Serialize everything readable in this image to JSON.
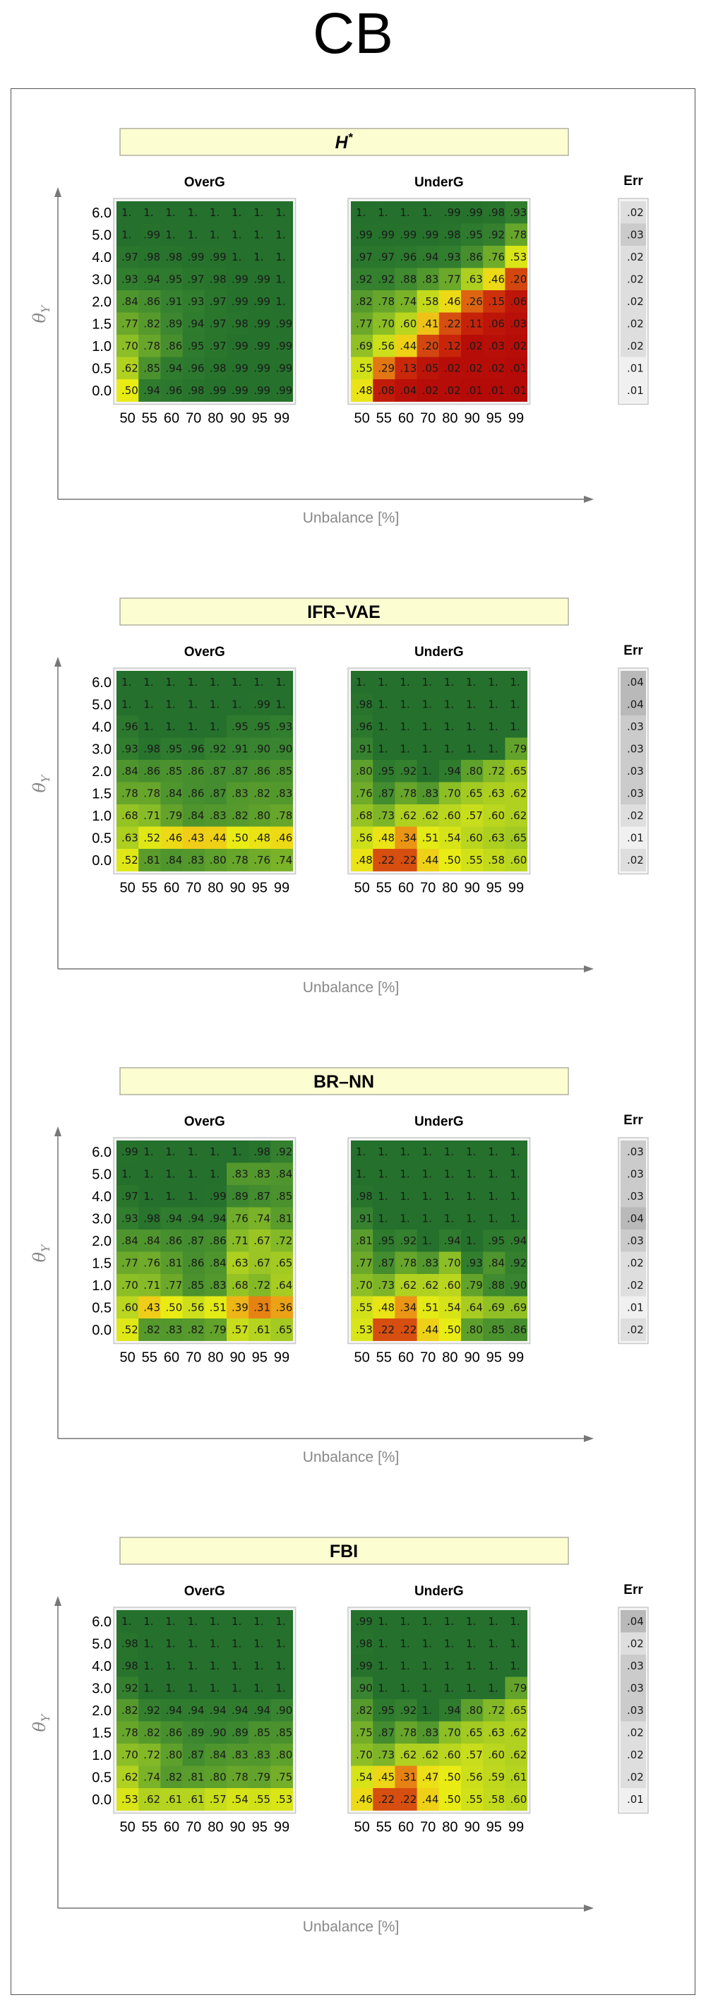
{
  "page_title": "CB",
  "chart_data": [
    {
      "type": "heatmap",
      "title": "H",
      "title_superscript": "*",
      "xlabel": "Unbalance [%]",
      "ylabel": "θ",
      "ylabel_subscript": "Y",
      "x": [
        "50",
        "55",
        "60",
        "70",
        "80",
        "90",
        "95",
        "99"
      ],
      "y": [
        "6.0",
        "5.0",
        "4.0",
        "3.0",
        "2.0",
        "1.5",
        "1.0",
        "0.5",
        "0.0"
      ],
      "err_header": "Err",
      "panels": [
        {
          "name": "OverG",
          "values": [
            [
              1,
              1,
              1,
              1,
              1,
              1,
              1,
              1
            ],
            [
              1,
              0.99,
              1,
              1,
              1,
              1,
              1,
              1
            ],
            [
              0.97,
              0.98,
              0.98,
              0.99,
              0.99,
              1,
              1,
              1
            ],
            [
              0.93,
              0.94,
              0.95,
              0.97,
              0.98,
              0.99,
              0.99,
              1
            ],
            [
              0.84,
              0.86,
              0.91,
              0.93,
              0.97,
              0.99,
              0.99,
              1
            ],
            [
              0.77,
              0.82,
              0.89,
              0.94,
              0.97,
              0.98,
              0.99,
              0.99
            ],
            [
              0.7,
              0.78,
              0.86,
              0.95,
              0.97,
              0.99,
              0.99,
              0.99
            ],
            [
              0.62,
              0.85,
              0.94,
              0.96,
              0.98,
              0.99,
              0.99,
              0.99
            ],
            [
              0.5,
              0.94,
              0.96,
              0.98,
              0.99,
              0.99,
              0.99,
              0.99
            ]
          ]
        },
        {
          "name": "UnderG",
          "values": [
            [
              1,
              1,
              1,
              1,
              0.99,
              0.99,
              0.98,
              0.93
            ],
            [
              0.99,
              0.99,
              0.99,
              0.99,
              0.98,
              0.95,
              0.92,
              0.78
            ],
            [
              0.97,
              0.97,
              0.96,
              0.94,
              0.93,
              0.86,
              0.76,
              0.53
            ],
            [
              0.92,
              0.92,
              0.88,
              0.83,
              0.77,
              0.63,
              0.46,
              0.2
            ],
            [
              0.82,
              0.78,
              0.74,
              0.58,
              0.46,
              0.26,
              0.15,
              0.06
            ],
            [
              0.77,
              0.7,
              0.6,
              0.41,
              0.22,
              0.11,
              0.06,
              0.03
            ],
            [
              0.69,
              0.56,
              0.44,
              0.2,
              0.12,
              0.02,
              0.03,
              0.02
            ],
            [
              0.55,
              0.29,
              0.13,
              0.05,
              0.02,
              0.02,
              0.02,
              0.01
            ],
            [
              0.48,
              0.08,
              0.04,
              0.02,
              0.02,
              0.01,
              0.01,
              0.01
            ]
          ]
        }
      ],
      "err": [
        0.02,
        0.03,
        0.02,
        0.02,
        0.02,
        0.02,
        0.02,
        0.01,
        0.01
      ]
    },
    {
      "type": "heatmap",
      "title": "IFR–VAE",
      "xlabel": "Unbalance [%]",
      "ylabel": "θ",
      "ylabel_subscript": "Y",
      "x": [
        "50",
        "55",
        "60",
        "70",
        "80",
        "90",
        "95",
        "99"
      ],
      "y": [
        "6.0",
        "5.0",
        "4.0",
        "3.0",
        "2.0",
        "1.5",
        "1.0",
        "0.5",
        "0.0"
      ],
      "err_header": "Err",
      "panels": [
        {
          "name": "OverG",
          "values": [
            [
              1,
              1,
              1,
              1,
              1,
              1,
              1,
              1
            ],
            [
              1,
              1,
              1,
              1,
              1,
              1,
              0.99,
              1
            ],
            [
              0.96,
              1,
              1,
              1,
              1,
              0.95,
              0.95,
              0.93
            ],
            [
              0.93,
              0.98,
              0.95,
              0.96,
              0.92,
              0.91,
              0.9,
              0.9
            ],
            [
              0.84,
              0.86,
              0.85,
              0.86,
              0.87,
              0.87,
              0.86,
              0.85
            ],
            [
              0.78,
              0.78,
              0.84,
              0.86,
              0.87,
              0.83,
              0.82,
              0.83
            ],
            [
              0.68,
              0.71,
              0.79,
              0.84,
              0.83,
              0.82,
              0.8,
              0.78
            ],
            [
              0.63,
              0.52,
              0.46,
              0.43,
              0.44,
              0.5,
              0.48,
              0.46
            ],
            [
              0.52,
              0.81,
              0.84,
              0.83,
              0.8,
              0.78,
              0.76,
              0.74
            ]
          ]
        },
        {
          "name": "UnderG",
          "values": [
            [
              1,
              1,
              1,
              1,
              1,
              1,
              1,
              1
            ],
            [
              0.98,
              1,
              1,
              1,
              1,
              1,
              1,
              1
            ],
            [
              0.96,
              1,
              1,
              1,
              1,
              1,
              1,
              1
            ],
            [
              0.91,
              1,
              1,
              1,
              1,
              1,
              1,
              0.79
            ],
            [
              0.8,
              0.95,
              0.92,
              1,
              0.94,
              0.8,
              0.72,
              0.65
            ],
            [
              0.76,
              0.87,
              0.78,
              0.83,
              0.7,
              0.65,
              0.63,
              0.62
            ],
            [
              0.68,
              0.73,
              0.62,
              0.62,
              0.6,
              0.57,
              0.6,
              0.62
            ],
            [
              0.56,
              0.48,
              0.34,
              0.51,
              0.54,
              0.6,
              0.63,
              0.65
            ],
            [
              0.48,
              0.22,
              0.22,
              0.44,
              0.5,
              0.55,
              0.58,
              0.6
            ]
          ]
        }
      ],
      "err": [
        0.04,
        0.04,
        0.03,
        0.03,
        0.03,
        0.03,
        0.02,
        0.01,
        0.02
      ]
    },
    {
      "type": "heatmap",
      "title": "BR–NN",
      "xlabel": "Unbalance [%]",
      "ylabel": "θ",
      "ylabel_subscript": "Y",
      "x": [
        "50",
        "55",
        "60",
        "70",
        "80",
        "90",
        "95",
        "99"
      ],
      "y": [
        "6.0",
        "5.0",
        "4.0",
        "3.0",
        "2.0",
        "1.5",
        "1.0",
        "0.5",
        "0.0"
      ],
      "err_header": "Err",
      "panels": [
        {
          "name": "OverG",
          "values": [
            [
              0.99,
              1,
              1,
              1,
              1,
              1,
              0.98,
              0.92
            ],
            [
              1,
              1,
              1,
              1,
              1,
              0.83,
              0.83,
              0.84
            ],
            [
              0.97,
              1,
              1,
              1,
              0.99,
              0.89,
              0.87,
              0.85
            ],
            [
              0.93,
              0.98,
              0.94,
              0.94,
              0.94,
              0.76,
              0.74,
              0.81
            ],
            [
              0.84,
              0.84,
              0.86,
              0.87,
              0.86,
              0.71,
              0.67,
              0.72
            ],
            [
              0.77,
              0.76,
              0.81,
              0.86,
              0.84,
              0.63,
              0.67,
              0.65
            ],
            [
              0.7,
              0.71,
              0.77,
              0.85,
              0.83,
              0.68,
              0.72,
              0.64
            ],
            [
              0.6,
              0.43,
              0.5,
              0.56,
              0.51,
              0.39,
              0.31,
              0.36
            ],
            [
              0.52,
              0.82,
              0.83,
              0.82,
              0.79,
              0.57,
              0.61,
              0.65
            ]
          ]
        },
        {
          "name": "UnderG",
          "values": [
            [
              1,
              1,
              1,
              1,
              1,
              1,
              1,
              1
            ],
            [
              1,
              1,
              1,
              1,
              1,
              1,
              1,
              1
            ],
            [
              0.98,
              1,
              1,
              1,
              1,
              1,
              1,
              1
            ],
            [
              0.91,
              1,
              1,
              1,
              1,
              1,
              1,
              1
            ],
            [
              0.81,
              0.95,
              0.92,
              1,
              0.94,
              1,
              0.95,
              0.94
            ],
            [
              0.77,
              0.87,
              0.78,
              0.83,
              0.7,
              0.93,
              0.84,
              0.92
            ],
            [
              0.7,
              0.73,
              0.62,
              0.62,
              0.6,
              0.79,
              0.88,
              0.9
            ],
            [
              0.55,
              0.48,
              0.34,
              0.51,
              0.54,
              0.64,
              0.69,
              0.69
            ],
            [
              0.53,
              0.22,
              0.22,
              0.44,
              0.5,
              0.8,
              0.85,
              0.86
            ]
          ]
        }
      ],
      "err": [
        0.03,
        0.03,
        0.03,
        0.04,
        0.03,
        0.02,
        0.02,
        0.01,
        0.02
      ]
    },
    {
      "type": "heatmap",
      "title": "FBI",
      "xlabel": "Unbalance [%]",
      "ylabel": "θ",
      "ylabel_subscript": "Y",
      "x": [
        "50",
        "55",
        "60",
        "70",
        "80",
        "90",
        "95",
        "99"
      ],
      "y": [
        "6.0",
        "5.0",
        "4.0",
        "3.0",
        "2.0",
        "1.5",
        "1.0",
        "0.5",
        "0.0"
      ],
      "err_header": "Err",
      "panels": [
        {
          "name": "OverG",
          "values": [
            [
              1,
              1,
              1,
              1,
              1,
              1,
              1,
              1
            ],
            [
              0.98,
              1,
              1,
              1,
              1,
              1,
              1,
              1
            ],
            [
              0.98,
              1,
              1,
              1,
              1,
              1,
              1,
              1
            ],
            [
              0.92,
              1,
              1,
              1,
              1,
              1,
              1,
              1
            ],
            [
              0.82,
              0.92,
              0.94,
              0.94,
              0.94,
              0.94,
              0.94,
              0.9
            ],
            [
              0.78,
              0.82,
              0.86,
              0.89,
              0.9,
              0.89,
              0.85,
              0.85
            ],
            [
              0.7,
              0.72,
              0.8,
              0.87,
              0.84,
              0.83,
              0.83,
              0.8
            ],
            [
              0.62,
              0.74,
              0.82,
              0.81,
              0.8,
              0.78,
              0.79,
              0.75
            ],
            [
              0.53,
              0.62,
              0.61,
              0.61,
              0.57,
              0.54,
              0.55,
              0.53
            ]
          ]
        },
        {
          "name": "UnderG",
          "values": [
            [
              0.99,
              1,
              1,
              1,
              1,
              1,
              1,
              1
            ],
            [
              0.98,
              1,
              1,
              1,
              1,
              1,
              1,
              1
            ],
            [
              0.99,
              1,
              1,
              1,
              1,
              1,
              1,
              1
            ],
            [
              0.9,
              1,
              1,
              1,
              1,
              1,
              1,
              0.79
            ],
            [
              0.82,
              0.95,
              0.92,
              1,
              0.94,
              0.8,
              0.72,
              0.65
            ],
            [
              0.75,
              0.87,
              0.78,
              0.83,
              0.7,
              0.65,
              0.63,
              0.62
            ],
            [
              0.7,
              0.73,
              0.62,
              0.62,
              0.6,
              0.57,
              0.6,
              0.62
            ],
            [
              0.54,
              0.45,
              0.31,
              0.47,
              0.5,
              0.56,
              0.59,
              0.61
            ],
            [
              0.46,
              0.22,
              0.22,
              0.44,
              0.5,
              0.55,
              0.58,
              0.6
            ]
          ]
        }
      ],
      "err": [
        0.04,
        0.02,
        0.03,
        0.03,
        0.03,
        0.02,
        0.02,
        0.02,
        0.01
      ]
    }
  ]
}
